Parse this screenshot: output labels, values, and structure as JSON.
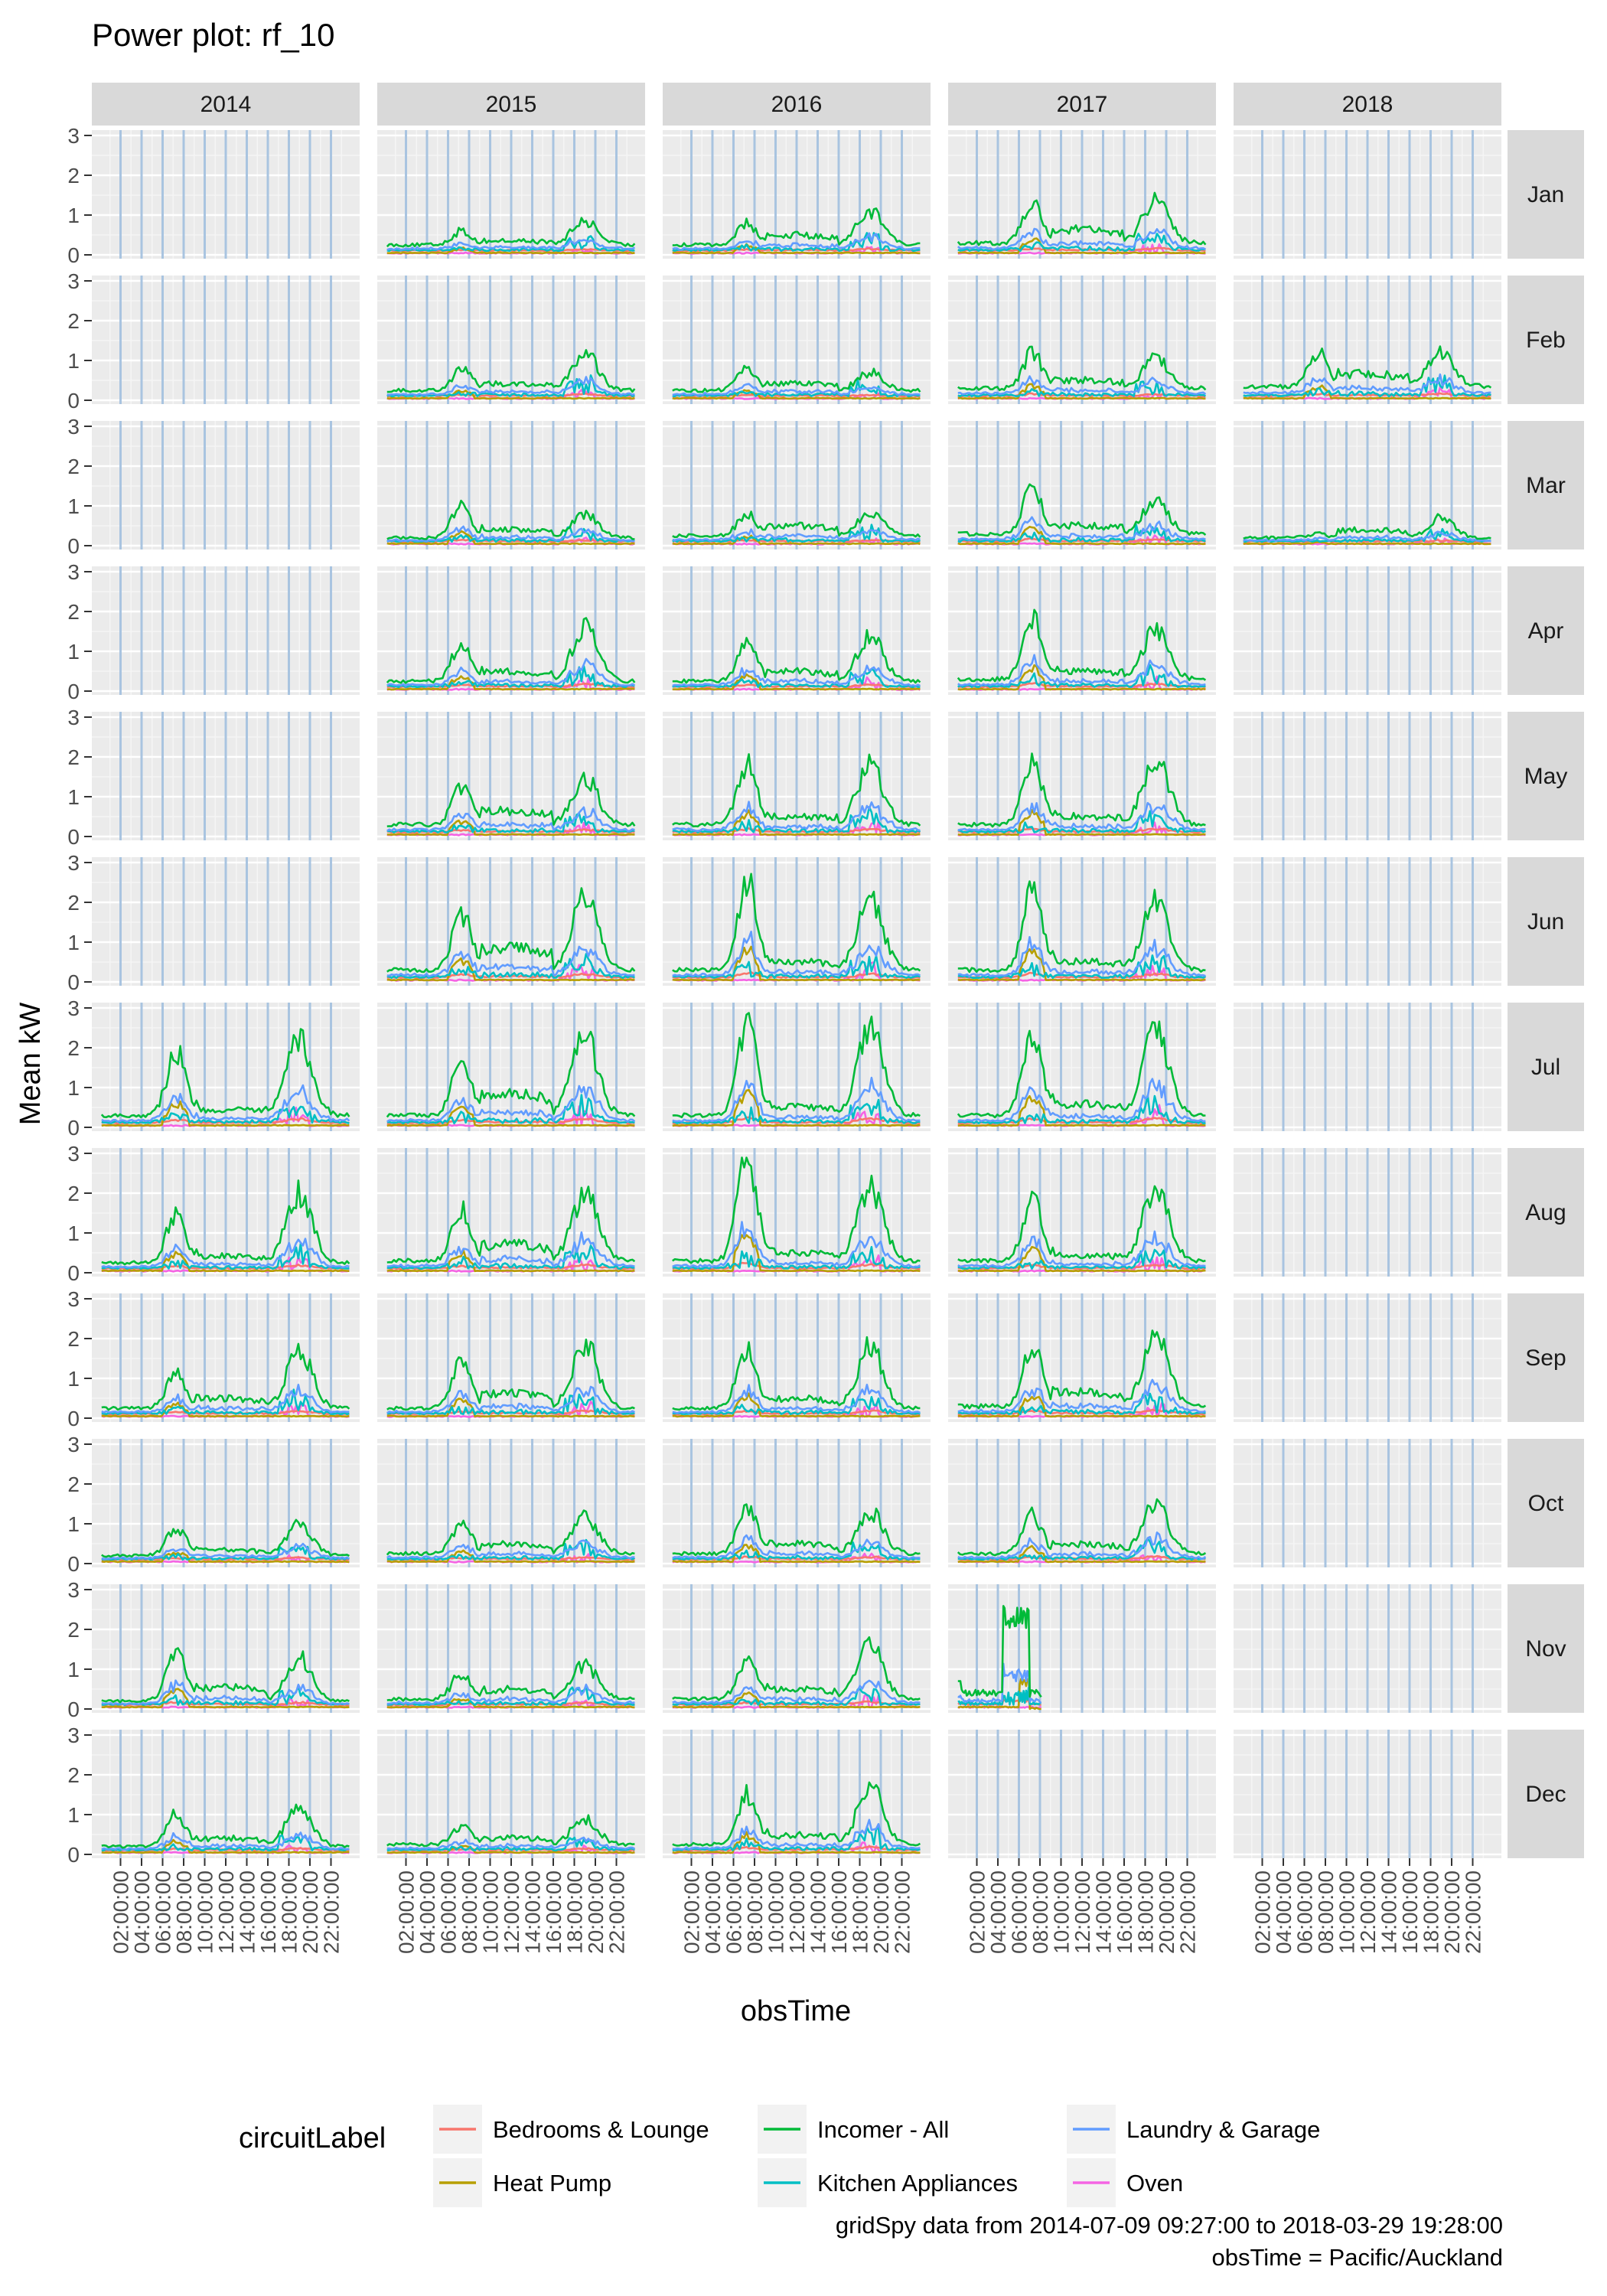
{
  "chart_data": {
    "type": "line",
    "title": "Power plot: rf_10",
    "xlabel": "obsTime",
    "ylabel": "Mean kW",
    "ylim": [
      0,
      3
    ],
    "y_ticks": [
      0,
      1,
      2,
      3
    ],
    "x_tick_labels": [
      "02:00:00",
      "04:00:00",
      "06:00:00",
      "08:00:00",
      "10:00:00",
      "12:00:00",
      "14:00:00",
      "16:00:00",
      "18:00:00",
      "20:00:00",
      "22:00:00"
    ],
    "x_tick_hours": [
      2,
      4,
      6,
      8,
      10,
      12,
      14,
      16,
      18,
      20,
      22
    ],
    "xlim_hours": [
      0,
      24
    ],
    "column_facets": [
      "2014",
      "2015",
      "2016",
      "2017",
      "2018"
    ],
    "row_facets": [
      "Jan",
      "Feb",
      "Mar",
      "Apr",
      "May",
      "Jun",
      "Jul",
      "Aug",
      "Sep",
      "Oct",
      "Nov",
      "Dec"
    ],
    "legend": {
      "title": "circuitLabel",
      "entries": [
        {
          "name": "Bedrooms & Lounge",
          "color": "#F8766D"
        },
        {
          "name": "Heat Pump",
          "color": "#B79F00"
        },
        {
          "name": "Incomer - All",
          "color": "#00BA38"
        },
        {
          "name": "Kitchen Appliances",
          "color": "#00BFC4"
        },
        {
          "name": "Laundry & Garage",
          "color": "#619CFF"
        },
        {
          "name": "Oven",
          "color": "#F564E3"
        }
      ]
    },
    "caption": [
      "gridSpy data from 2014-07-09 09:27:00 to 2018-03-29 19:28:00",
      "obsTime = Pacific/Auckland"
    ],
    "panels_with_data": {
      "2014": [
        "Jul",
        "Aug",
        "Sep",
        "Oct",
        "Nov",
        "Dec"
      ],
      "2015": [
        "Jan",
        "Feb",
        "Mar",
        "Apr",
        "May",
        "Jun",
        "Jul",
        "Aug",
        "Sep",
        "Oct",
        "Nov",
        "Dec"
      ],
      "2016": [
        "Jan",
        "Feb",
        "Mar",
        "Apr",
        "May",
        "Jun",
        "Jul",
        "Aug",
        "Sep",
        "Oct",
        "Nov",
        "Dec"
      ],
      "2017": [
        "Jan",
        "Feb",
        "Mar",
        "Apr",
        "May",
        "Jun",
        "Jul",
        "Aug",
        "Sep",
        "Oct",
        "Nov"
      ],
      "2018": [
        "Feb",
        "Mar"
      ]
    },
    "panel_profiles": {
      "Incomer - All": {
        "2014": {
          "Jul": [
            0.3,
            1.9,
            0.5,
            2.2
          ],
          "Aug": [
            0.25,
            1.5,
            0.5,
            2.0
          ],
          "Sep": [
            0.25,
            1.1,
            0.6,
            1.7
          ],
          "Oct": [
            0.2,
            0.9,
            0.4,
            1.0
          ],
          "Nov": [
            0.2,
            1.4,
            0.7,
            1.3
          ],
          "Dec": [
            0.2,
            1.0,
            0.5,
            1.2
          ]
        },
        "2015": {
          "Jan": [
            0.25,
            0.6,
            0.4,
            0.85
          ],
          "Feb": [
            0.25,
            0.8,
            0.5,
            1.2
          ],
          "Mar": [
            0.2,
            1.0,
            0.5,
            0.8
          ],
          "Apr": [
            0.25,
            1.2,
            0.6,
            1.6
          ],
          "May": [
            0.3,
            1.2,
            0.8,
            1.5
          ],
          "Jun": [
            0.3,
            1.7,
            1.1,
            2.1
          ],
          "Jul": [
            0.3,
            1.7,
            1.1,
            2.3
          ],
          "Aug": [
            0.3,
            1.6,
            0.9,
            2.0
          ],
          "Sep": [
            0.25,
            1.4,
            0.8,
            1.9
          ],
          "Oct": [
            0.25,
            1.0,
            0.6,
            1.2
          ],
          "Nov": [
            0.25,
            0.9,
            0.6,
            1.1
          ],
          "Dec": [
            0.25,
            0.7,
            0.5,
            0.9
          ]
        },
        "2016": {
          "Jan": [
            0.25,
            0.8,
            0.6,
            1.1
          ],
          "Feb": [
            0.25,
            0.8,
            0.5,
            0.7
          ],
          "Mar": [
            0.25,
            0.8,
            0.6,
            0.8
          ],
          "Apr": [
            0.25,
            1.2,
            0.6,
            1.4
          ],
          "May": [
            0.3,
            1.8,
            0.6,
            1.8
          ],
          "Jun": [
            0.3,
            2.5,
            0.6,
            2.0
          ],
          "Jul": [
            0.3,
            2.6,
            0.6,
            2.5
          ],
          "Aug": [
            0.3,
            3.0,
            0.6,
            2.1
          ],
          "Sep": [
            0.25,
            1.8,
            0.6,
            1.8
          ],
          "Oct": [
            0.25,
            1.4,
            0.6,
            1.3
          ],
          "Nov": [
            0.25,
            1.3,
            0.6,
            1.6
          ],
          "Dec": [
            0.25,
            1.5,
            0.6,
            1.7
          ]
        },
        "2017": {
          "Jan": [
            0.3,
            1.3,
            0.8,
            1.4
          ],
          "Feb": [
            0.3,
            1.2,
            0.6,
            1.1
          ],
          "Mar": [
            0.3,
            1.5,
            0.6,
            1.1
          ],
          "Apr": [
            0.3,
            1.8,
            0.6,
            1.5
          ],
          "May": [
            0.3,
            1.9,
            0.6,
            2.0
          ],
          "Jun": [
            0.3,
            2.3,
            0.6,
            2.0
          ],
          "Jul": [
            0.3,
            2.4,
            0.7,
            2.4
          ],
          "Aug": [
            0.3,
            1.9,
            0.5,
            2.1
          ],
          "Sep": [
            0.3,
            1.8,
            0.8,
            2.1
          ],
          "Oct": [
            0.25,
            1.2,
            0.6,
            1.5
          ],
          "Nov": [
            0.5,
            2.7,
            0.4,
            0.4
          ]
        },
        "2018": {
          "Feb": [
            0.35,
            1.2,
            0.8,
            1.2
          ],
          "Mar": [
            0.2,
            0.3,
            0.5,
            0.7
          ]
        }
      }
    }
  }
}
